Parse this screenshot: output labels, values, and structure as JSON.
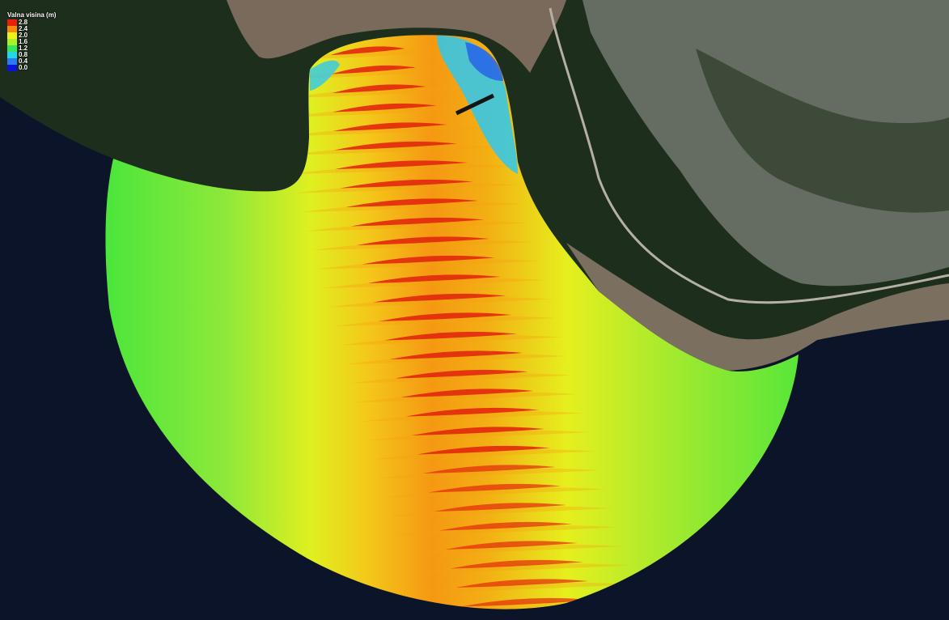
{
  "legend": {
    "title": "Valna visina (m)",
    "items": [
      {
        "label": "2.8",
        "color": "#e8200a"
      },
      {
        "label": "2.4",
        "color": "#f58a10"
      },
      {
        "label": "2.0",
        "color": "#eef21a"
      },
      {
        "label": "1.6",
        "color": "#a8f028"
      },
      {
        "label": "1.2",
        "color": "#32e85a"
      },
      {
        "label": "0.8",
        "color": "#22d8e8"
      },
      {
        "label": "0.4",
        "color": "#2a7af0"
      },
      {
        "label": "0.0",
        "color": "#0a14d8"
      }
    ]
  },
  "colors": {
    "sea": "#0b1428",
    "land_dark": "#1c2c1c",
    "land_light": "#8a8e86",
    "wave_green": "#46e63c",
    "wave_yellow": "#e9f01e",
    "wave_orange": "#f5a012",
    "wave_red": "#e2280c",
    "calm_cyan": "#2ec8f0",
    "calm_blue": "#2864e8"
  }
}
